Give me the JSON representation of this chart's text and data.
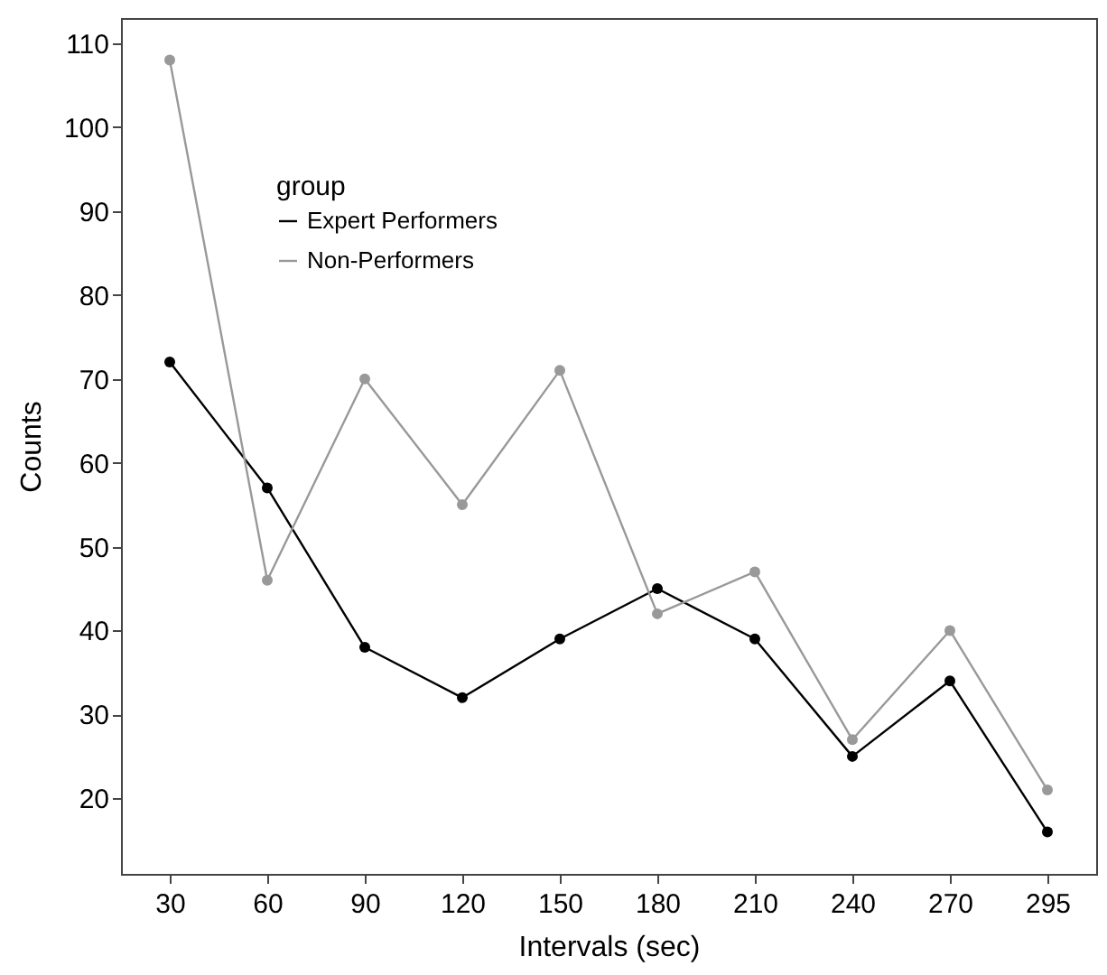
{
  "chart_data": {
    "type": "line",
    "xlabel": "Intervals (sec)",
    "ylabel": "Counts",
    "legend_title": "group",
    "categories": [
      "30",
      "60",
      "90",
      "120",
      "150",
      "180",
      "210",
      "240",
      "270",
      "295"
    ],
    "series": [
      {
        "name": "Expert Performers",
        "color": "#000000",
        "values": [
          72,
          57,
          38,
          32,
          39,
          45,
          39,
          25,
          34,
          16
        ]
      },
      {
        "name": "Non-Performers",
        "color": "#999999",
        "values": [
          108,
          46,
          70,
          55,
          71,
          42,
          47,
          27,
          40,
          21
        ]
      }
    ],
    "ylim": [
      11,
      113
    ],
    "yticks": [
      20,
      30,
      40,
      50,
      60,
      70,
      80,
      90,
      100,
      110
    ],
    "grid": false,
    "legend": "top left",
    "marker": "circle",
    "line_style": "solid"
  }
}
